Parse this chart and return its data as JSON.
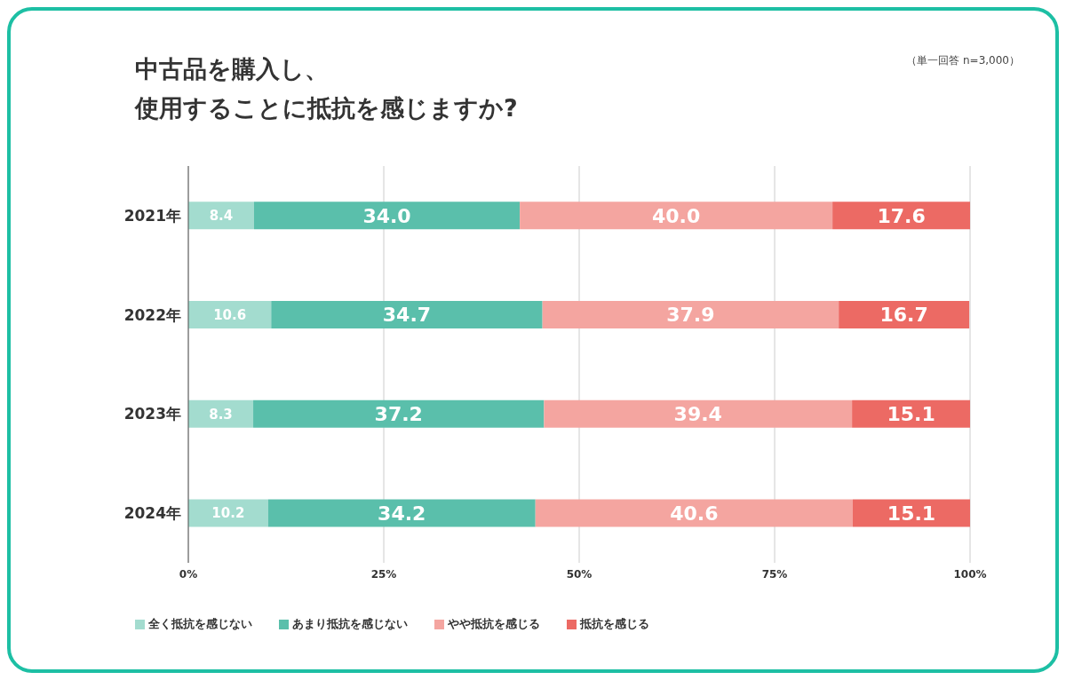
{
  "chart_data": {
    "type": "bar",
    "orientation": "horizontal",
    "stacked": true,
    "title": "中古品を購入し、使用することに抵抗を感じますか?",
    "annotations": [
      "（単一回答 n=3,000）"
    ],
    "categories": [
      "2021年",
      "2022年",
      "2023年",
      "2024年"
    ],
    "series": [
      {
        "name": "全く抵抗を感じない",
        "color": "#a3dccf",
        "values": [
          8.4,
          10.6,
          8.3,
          10.2
        ],
        "value_labels": [
          "8.4",
          "10.6",
          "8.3",
          "10.2"
        ]
      },
      {
        "name": "あまり抵抗を感じない",
        "color": "#5abfab",
        "values": [
          34.0,
          34.7,
          37.2,
          34.2
        ],
        "value_labels": [
          "34.0",
          "34.7",
          "37.2",
          "34.2"
        ]
      },
      {
        "name": "やや抵抗を感じる",
        "color": "#f4a5a0",
        "values": [
          40.0,
          37.9,
          39.4,
          40.6
        ],
        "value_labels": [
          "40.0",
          "37.9",
          "39.4",
          "40.6"
        ]
      },
      {
        "name": "抵抗を感じる",
        "color": "#ec6a64",
        "values": [
          17.6,
          16.7,
          15.1,
          15.1
        ],
        "value_labels": [
          "17.6",
          "16.7",
          "15.1",
          "15.1"
        ]
      }
    ],
    "xlim": [
      0,
      100
    ],
    "xticks": [
      {
        "value": 0,
        "label": "0%"
      },
      {
        "value": 25,
        "label": "25%"
      },
      {
        "value": 50,
        "label": "50%"
      },
      {
        "value": 75,
        "label": "75%"
      },
      {
        "value": 100,
        "label": "100%"
      }
    ],
    "grid": "x",
    "legend": "bottom"
  }
}
